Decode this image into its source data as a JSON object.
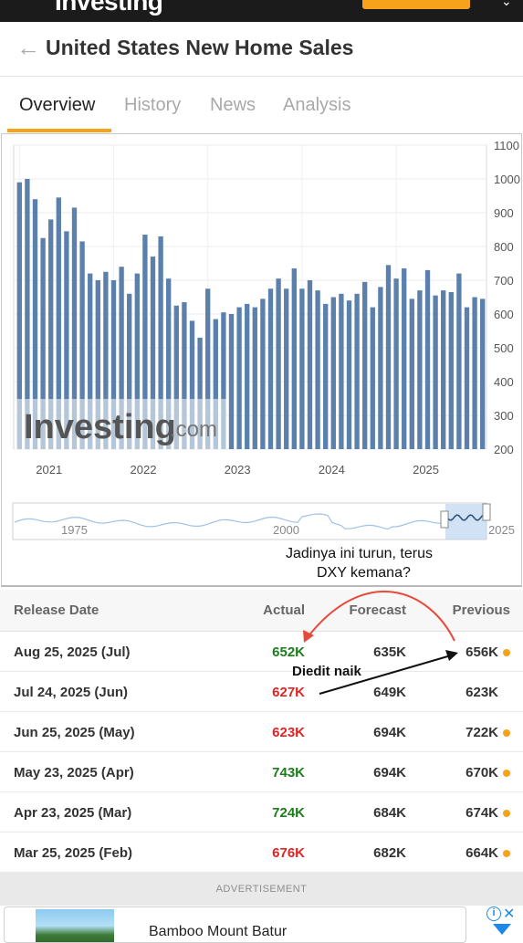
{
  "topbar": {
    "brand": "Investing",
    "cta": ""
  },
  "header": {
    "title": "United States New Home Sales"
  },
  "tabs": [
    {
      "label": "Overview",
      "active": true
    },
    {
      "label": "History",
      "active": false
    },
    {
      "label": "News",
      "active": false
    },
    {
      "label": "Analysis",
      "active": false
    }
  ],
  "chart_data": {
    "type": "bar",
    "watermark": "Investing",
    "watermark_suffix": ".com",
    "x_tick_labels": [
      "2021",
      "2022",
      "2023",
      "2024",
      "2025"
    ],
    "y_ticks": [
      200,
      300,
      400,
      500,
      600,
      700,
      800,
      900,
      1000,
      1100
    ],
    "ylim": [
      200,
      1100
    ],
    "values": [
      990,
      1000,
      940,
      825,
      880,
      945,
      845,
      915,
      815,
      720,
      700,
      725,
      700,
      740,
      660,
      720,
      835,
      770,
      830,
      705,
      625,
      635,
      580,
      530,
      675,
      585,
      605,
      600,
      620,
      630,
      620,
      645,
      675,
      705,
      675,
      735,
      675,
      700,
      670,
      630,
      650,
      660,
      640,
      660,
      695,
      620,
      680,
      745,
      705,
      735,
      645,
      670,
      730,
      655,
      670,
      665,
      720,
      620,
      650,
      645
    ],
    "color": "#5b80ab",
    "navigator": {
      "labels": [
        "1975",
        "2000",
        "2025"
      ]
    }
  },
  "annotations": {
    "question_line1": "Jadinya ini turun, terus",
    "question_line2": "DXY kemana?",
    "edit_note": "Diedit naik"
  },
  "table": {
    "headers": {
      "date": "Release Date",
      "actual": "Actual",
      "forecast": "Forecast",
      "previous": "Previous"
    },
    "rows": [
      {
        "date": "Aug 25, 2025 (Jul)",
        "actual": "652K",
        "actual_status": "green",
        "forecast": "635K",
        "previous": "656K",
        "revised": true
      },
      {
        "date": "Jul 24, 2025 (Jun)",
        "actual": "627K",
        "actual_status": "red",
        "forecast": "649K",
        "previous": "623K",
        "revised": false
      },
      {
        "date": "Jun 25, 2025 (May)",
        "actual": "623K",
        "actual_status": "red",
        "forecast": "694K",
        "previous": "722K",
        "revised": true
      },
      {
        "date": "May 23, 2025 (Apr)",
        "actual": "743K",
        "actual_status": "green",
        "forecast": "694K",
        "previous": "670K",
        "revised": true
      },
      {
        "date": "Apr 23, 2025 (Mar)",
        "actual": "724K",
        "actual_status": "green",
        "forecast": "684K",
        "previous": "674K",
        "revised": true
      },
      {
        "date": "Mar 25, 2025 (Feb)",
        "actual": "676K",
        "actual_status": "red",
        "forecast": "682K",
        "previous": "664K",
        "revised": true
      }
    ]
  },
  "ad": {
    "label": "ADVERTISEMENT",
    "title": "Bamboo Mount Batur",
    "info_icon": "i"
  },
  "colors": {
    "accent": "#f7a21b",
    "bar": "#5b80ab",
    "positive": "#1c7d1c",
    "negative": "#e02424",
    "annotation": "#e64a3a"
  }
}
